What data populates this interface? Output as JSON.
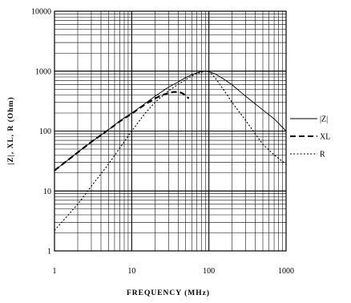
{
  "chart_data": {
    "type": "line",
    "xlabel": "FREQUENCY (MHz)",
    "ylabel": "|Z|, XL, R (Ohm)",
    "x_scale": "log",
    "y_scale": "log",
    "xlim": [
      1,
      1000
    ],
    "ylim": [
      1,
      10000
    ],
    "grid": true,
    "legend_position": "right",
    "x_ticks": [
      "1",
      "10",
      "100",
      "1000"
    ],
    "y_ticks": [
      "1",
      "10",
      "100",
      "1000",
      "10000"
    ],
    "series": [
      {
        "name": "|Z|",
        "style": "solid",
        "color": "#000000",
        "x": [
          1,
          2,
          3,
          5,
          7,
          10,
          15,
          20,
          30,
          40,
          50,
          60,
          70,
          80,
          90,
          100,
          120,
          150,
          200,
          300,
          500,
          700,
          1000
        ],
        "y": [
          22,
          44,
          66,
          105,
          148,
          200,
          290,
          380,
          540,
          660,
          780,
          870,
          940,
          990,
          1000,
          980,
          900,
          760,
          590,
          380,
          225,
          160,
          100
        ]
      },
      {
        "name": "XL",
        "style": "dashed",
        "color": "#000000",
        "x": [
          1,
          2,
          3,
          5,
          7,
          10,
          15,
          20,
          25,
          30,
          35,
          40,
          45,
          50,
          55
        ],
        "y": [
          22,
          44,
          66,
          105,
          145,
          195,
          280,
          350,
          400,
          430,
          450,
          450,
          430,
          390,
          350
        ]
      },
      {
        "name": "R",
        "style": "dotted",
        "color": "#000000",
        "x": [
          1,
          2,
          3,
          5,
          7,
          10,
          15,
          20,
          30,
          40,
          50,
          60,
          70,
          80,
          90,
          100,
          120,
          150,
          200,
          300,
          500,
          700,
          1000
        ],
        "y": [
          2.2,
          6,
          12,
          28,
          52,
          100,
          200,
          300,
          470,
          600,
          720,
          830,
          910,
          960,
          1000,
          980,
          780,
          520,
          300,
          150,
          60,
          40,
          28
        ]
      }
    ]
  }
}
